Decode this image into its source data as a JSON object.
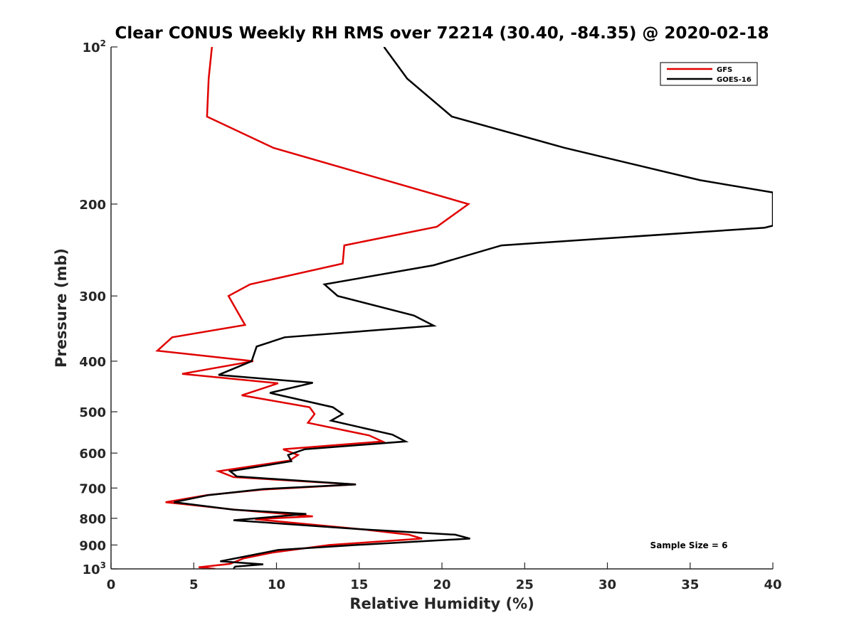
{
  "chart_data": {
    "type": "line",
    "title": "Clear CONUS Weekly RH RMS over 72214 (30.40, -84.35) @ 2020-02-18",
    "xlabel": "Relative Humidity (%)",
    "ylabel": "Pressure (mb)",
    "xlim": [
      0,
      40
    ],
    "ylim": [
      100,
      1000
    ],
    "yscale": "log",
    "y_reversed": true,
    "xticks": [
      0,
      5,
      10,
      15,
      20,
      25,
      30,
      35,
      40
    ],
    "xtick_labels": [
      "0",
      "5",
      "10",
      "15",
      "20",
      "25",
      "30",
      "35",
      "40"
    ],
    "yticks": [
      {
        "value": 100,
        "base": "10",
        "exp": "2"
      },
      {
        "value": 200,
        "label": "200"
      },
      {
        "value": 300,
        "label": "300"
      },
      {
        "value": 400,
        "label": "400"
      },
      {
        "value": 500,
        "label": "500"
      },
      {
        "value": 600,
        "label": "600"
      },
      {
        "value": 700,
        "label": "700"
      },
      {
        "value": 800,
        "label": "800"
      },
      {
        "value": 900,
        "label": "900"
      },
      {
        "value": 1000,
        "base": "10",
        "exp": "3"
      }
    ],
    "legend_position": "top-right",
    "annotation": "Sample Size = 6",
    "series": [
      {
        "name": "GFS",
        "color": "#e00000",
        "points": [
          [
            6.1,
            100
          ],
          [
            5.9,
            115
          ],
          [
            5.8,
            136
          ],
          [
            9.8,
            156
          ],
          [
            21.6,
            200
          ],
          [
            19.7,
            221
          ],
          [
            14.1,
            240
          ],
          [
            14.0,
            260
          ],
          [
            8.4,
            285
          ],
          [
            7.1,
            300
          ],
          [
            8.1,
            341
          ],
          [
            3.7,
            360
          ],
          [
            2.8,
            382
          ],
          [
            8.6,
            400
          ],
          [
            4.3,
            423
          ],
          [
            10.1,
            441
          ],
          [
            7.9,
            465
          ],
          [
            12.0,
            490
          ],
          [
            12.3,
            505
          ],
          [
            11.9,
            525
          ],
          [
            15.6,
            555
          ],
          [
            16.4,
            570
          ],
          [
            10.4,
            590
          ],
          [
            11.3,
            605
          ],
          [
            10.8,
            620
          ],
          [
            6.5,
            650
          ],
          [
            7.4,
            667
          ],
          [
            14.8,
            689
          ],
          [
            9.1,
            705
          ],
          [
            5.8,
            722
          ],
          [
            3.3,
            745
          ],
          [
            7.5,
            770
          ],
          [
            12.2,
            793
          ],
          [
            8.7,
            803
          ],
          [
            15.2,
            840
          ],
          [
            18.0,
            860
          ],
          [
            18.8,
            875
          ],
          [
            13.2,
            900
          ],
          [
            9.8,
            930
          ],
          [
            8.0,
            955
          ],
          [
            7.2,
            978
          ],
          [
            5.3,
            993
          ],
          [
            6.3,
            1000
          ]
        ]
      },
      {
        "name": "GOES-16",
        "color": "#000000",
        "points": [
          [
            16.5,
            100
          ],
          [
            17.9,
            115
          ],
          [
            20.6,
            136
          ],
          [
            27.4,
            156
          ],
          [
            35.6,
            180
          ],
          [
            40.0,
            190
          ],
          [
            40.0,
            220
          ],
          [
            39.5,
            222
          ],
          [
            23.6,
            240
          ],
          [
            19.5,
            262
          ],
          [
            12.9,
            285
          ],
          [
            13.7,
            300
          ],
          [
            18.3,
            327
          ],
          [
            19.5,
            342
          ],
          [
            10.5,
            360
          ],
          [
            8.8,
            375
          ],
          [
            8.5,
            400
          ],
          [
            6.5,
            425
          ],
          [
            12.2,
            440
          ],
          [
            9.6,
            460
          ],
          [
            13.4,
            490
          ],
          [
            14.0,
            505
          ],
          [
            13.3,
            520
          ],
          [
            17.0,
            553
          ],
          [
            17.8,
            570
          ],
          [
            11.7,
            590
          ],
          [
            10.7,
            605
          ],
          [
            10.9,
            622
          ],
          [
            7.2,
            650
          ],
          [
            7.6,
            665
          ],
          [
            14.8,
            689
          ],
          [
            9.2,
            703
          ],
          [
            5.9,
            722
          ],
          [
            3.8,
            745
          ],
          [
            7.4,
            770
          ],
          [
            11.8,
            785
          ],
          [
            7.4,
            807
          ],
          [
            15.2,
            840
          ],
          [
            20.8,
            860
          ],
          [
            21.7,
            875
          ],
          [
            14.8,
            900
          ],
          [
            10.1,
            920
          ],
          [
            8.0,
            948
          ],
          [
            6.6,
            967
          ],
          [
            9.2,
            980
          ],
          [
            7.5,
            990
          ],
          [
            7.4,
            1000
          ]
        ]
      }
    ]
  }
}
